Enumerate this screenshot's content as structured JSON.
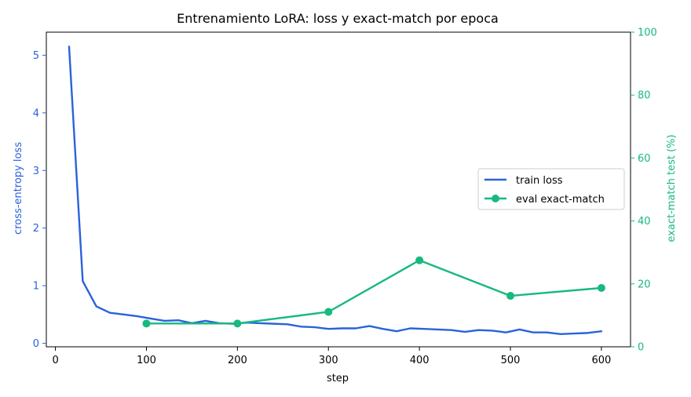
{
  "chart_data": {
    "type": "line",
    "title": "Entrenamiento LoRA: loss y exact-match por epoca",
    "xlabel": "step",
    "ylabel_left": "cross-entropy loss",
    "ylabel_right": "exact-match test (%)",
    "xlim": [
      -10,
      632
    ],
    "ylim_left": [
      -0.06,
      5.4
    ],
    "ylim_right": [
      0,
      100
    ],
    "x_ticks": [
      0,
      100,
      200,
      300,
      400,
      500,
      600
    ],
    "y_left_ticks": [
      0,
      1,
      2,
      3,
      4,
      5
    ],
    "y_right_ticks": [
      0,
      20,
      40,
      60,
      80,
      100
    ],
    "grid": false,
    "legend_position": "center-right",
    "series": [
      {
        "name": "train loss",
        "axis": "left",
        "color": "#2a62db",
        "marker": "none",
        "x": [
          15,
          30,
          45,
          60,
          75,
          90,
          105,
          120,
          135,
          150,
          165,
          180,
          195,
          210,
          225,
          240,
          255,
          270,
          285,
          300,
          315,
          330,
          345,
          360,
          375,
          390,
          405,
          420,
          435,
          450,
          465,
          480,
          495,
          510,
          525,
          540,
          555,
          570,
          585,
          600
        ],
        "y": [
          5.15,
          1.08,
          0.64,
          0.53,
          0.5,
          0.47,
          0.43,
          0.39,
          0.4,
          0.35,
          0.39,
          0.35,
          0.34,
          0.36,
          0.35,
          0.34,
          0.33,
          0.29,
          0.28,
          0.25,
          0.26,
          0.26,
          0.3,
          0.25,
          0.21,
          0.26,
          0.25,
          0.24,
          0.23,
          0.2,
          0.23,
          0.22,
          0.19,
          0.24,
          0.19,
          0.19,
          0.16,
          0.17,
          0.18,
          0.21
        ]
      },
      {
        "name": "eval exact-match",
        "axis": "right",
        "color": "#17b97e",
        "marker": "circle",
        "x": [
          100,
          200,
          300,
          400,
          500,
          600
        ],
        "y": [
          7.4,
          7.4,
          11.1,
          27.5,
          16.2,
          18.7
        ]
      }
    ],
    "colors": {
      "left_axis": "#2a62db",
      "right_axis": "#17b97e",
      "axes": "#000000"
    }
  }
}
